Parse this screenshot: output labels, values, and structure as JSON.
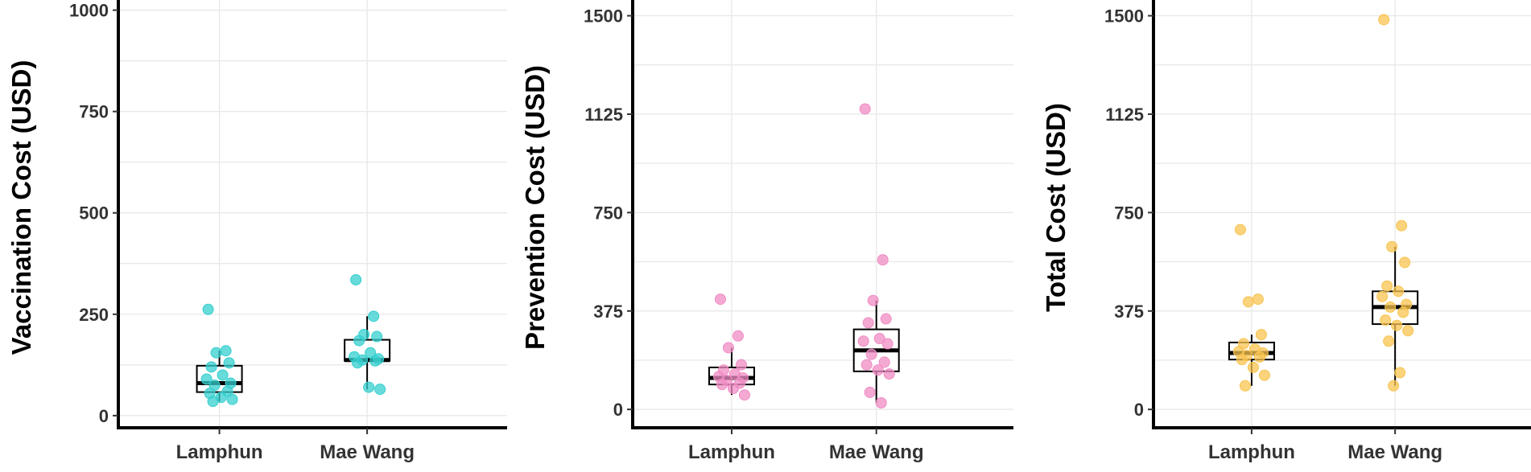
{
  "chart_data": [
    {
      "type": "box",
      "categories": [
        "Lamphun",
        "Mae Wang"
      ],
      "ylabel": "Vaccination Cost (USD)",
      "xlabel": "",
      "ylim": [
        -30,
        1025
      ],
      "yticks": [
        0,
        250,
        500,
        750,
        1000
      ],
      "ytick_labels": [
        "0",
        "250",
        "500",
        "750",
        "1000"
      ],
      "grid": true,
      "point_color": "#36CFCF",
      "groups": [
        {
          "name": "Lamphun",
          "q1": 58,
          "median": 80,
          "q3": 123,
          "whisker_low": 35,
          "whisker_high": 160,
          "points": [
            262,
            160,
            155,
            130,
            120,
            100,
            90,
            80,
            75,
            60,
            55,
            45,
            40,
            35
          ]
        },
        {
          "name": "Mae Wang",
          "q1": 135,
          "median": 137,
          "q3": 187,
          "whisker_low": 65,
          "whisker_high": 245,
          "points": [
            335,
            245,
            200,
            195,
            185,
            155,
            145,
            140,
            137,
            135,
            130,
            70,
            65
          ]
        }
      ]
    },
    {
      "type": "box",
      "categories": [
        "Lamphun",
        "Mae Wang"
      ],
      "ylabel": "Prevention Cost (USD)",
      "xlabel": "",
      "ylim": [
        -70,
        1560
      ],
      "yticks": [
        0,
        375,
        750,
        1125,
        1500
      ],
      "ytick_labels": [
        "0",
        "375",
        "750",
        "1125",
        "1500"
      ],
      "grid": true,
      "point_color": "#F08CC4",
      "groups": [
        {
          "name": "Lamphun",
          "q1": 95,
          "median": 120,
          "q3": 160,
          "whisker_low": 55,
          "whisker_high": 235,
          "points": [
            420,
            280,
            235,
            170,
            150,
            135,
            125,
            120,
            110,
            100,
            95,
            80,
            55
          ]
        },
        {
          "name": "Mae Wang",
          "q1": 145,
          "median": 225,
          "q3": 305,
          "whisker_low": 25,
          "whisker_high": 415,
          "points": [
            1145,
            570,
            415,
            345,
            330,
            270,
            260,
            250,
            210,
            180,
            170,
            150,
            135,
            65,
            25
          ]
        }
      ]
    },
    {
      "type": "box",
      "categories": [
        "Lamphun",
        "Mae Wang"
      ],
      "ylabel": "Total Cost (USD)",
      "xlabel": "",
      "ylim": [
        -70,
        1560
      ],
      "yticks": [
        0,
        375,
        750,
        1125,
        1500
      ],
      "ytick_labels": [
        "0",
        "375",
        "750",
        "1125",
        "1500"
      ],
      "grid": true,
      "point_color": "#F8C450",
      "groups": [
        {
          "name": "Lamphun",
          "q1": 190,
          "median": 215,
          "q3": 255,
          "whisker_low": 90,
          "whisker_high": 285,
          "points": [
            685,
            420,
            410,
            285,
            250,
            230,
            220,
            215,
            205,
            200,
            190,
            160,
            130,
            90
          ]
        },
        {
          "name": "Mae Wang",
          "q1": 325,
          "median": 390,
          "q3": 450,
          "whisker_low": 90,
          "whisker_high": 620,
          "points": [
            1485,
            700,
            620,
            560,
            470,
            450,
            430,
            400,
            390,
            370,
            340,
            320,
            300,
            260,
            140,
            90
          ]
        }
      ]
    }
  ]
}
